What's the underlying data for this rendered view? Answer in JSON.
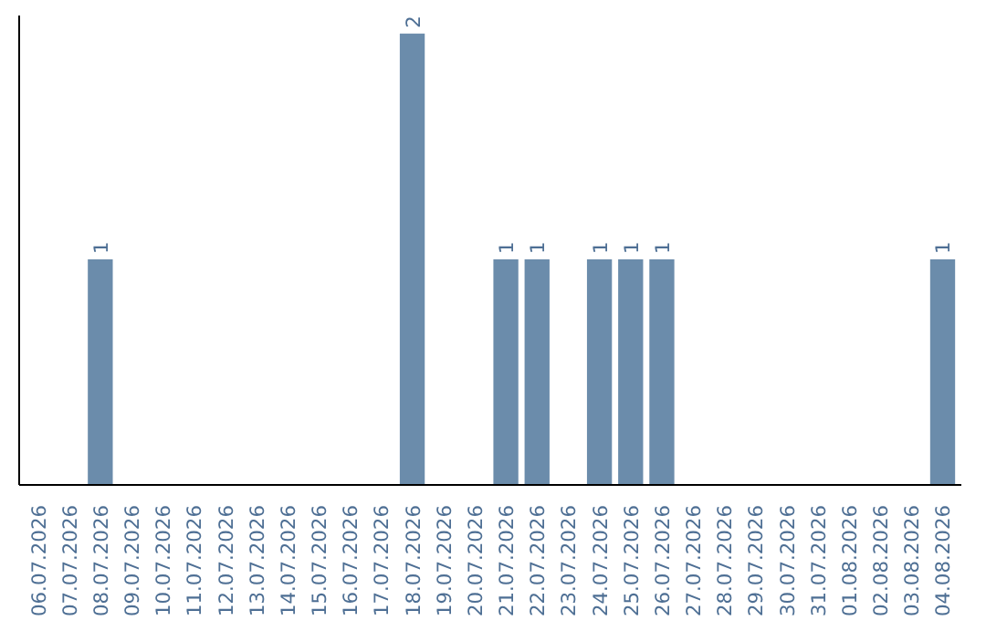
{
  "chart_data": {
    "type": "bar",
    "categories": [
      "06.07.2026",
      "07.07.2026",
      "08.07.2026",
      "09.07.2026",
      "10.07.2026",
      "11.07.2026",
      "12.07.2026",
      "13.07.2026",
      "14.07.2026",
      "15.07.2026",
      "16.07.2026",
      "17.07.2026",
      "18.07.2026",
      "19.07.2026",
      "20.07.2026",
      "21.07.2026",
      "22.07.2026",
      "23.07.2026",
      "24.07.2026",
      "25.07.2026",
      "26.07.2026",
      "27.07.2026",
      "28.07.2026",
      "29.07.2026",
      "30.07.2026",
      "31.07.2026",
      "01.08.2026",
      "02.08.2026",
      "03.08.2026",
      "04.08.2026"
    ],
    "values": [
      0,
      0,
      1,
      0,
      0,
      0,
      0,
      0,
      0,
      0,
      0,
      0,
      2,
      0,
      0,
      1,
      1,
      0,
      1,
      1,
      1,
      0,
      0,
      0,
      0,
      0,
      0,
      0,
      0,
      1
    ],
    "value_labels": [
      null,
      null,
      "1",
      null,
      null,
      null,
      null,
      null,
      null,
      null,
      null,
      null,
      "2",
      null,
      null,
      "1",
      "1",
      null,
      "1",
      "1",
      "1",
      null,
      null,
      null,
      null,
      null,
      null,
      null,
      null,
      "1"
    ],
    "color": "#6b8cab",
    "grid": false,
    "tick_labels": "x"
  }
}
